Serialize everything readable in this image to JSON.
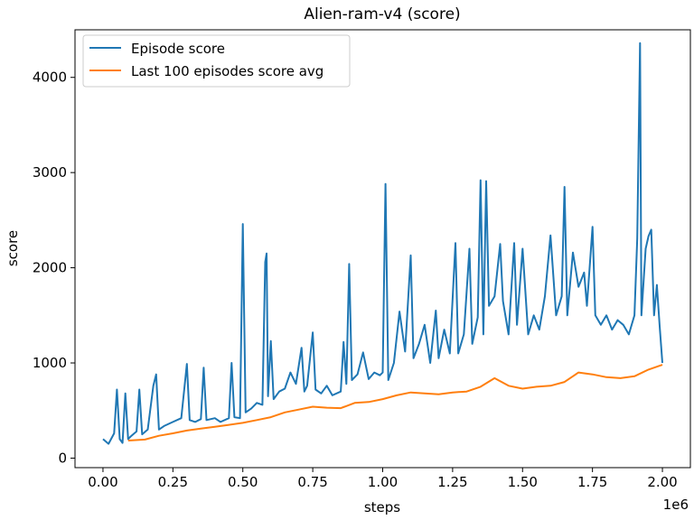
{
  "chart_data": {
    "type": "line",
    "title": "Alien-ram-v4 (score)",
    "xlabel": "steps",
    "ylabel": "score",
    "x_offset_label": "1e6",
    "xlim": [
      -0.1,
      2.1
    ],
    "ylim": [
      -100,
      4500
    ],
    "x_ticks": [
      0.0,
      0.25,
      0.5,
      0.75,
      1.0,
      1.25,
      1.5,
      1.75,
      2.0
    ],
    "x_tick_labels": [
      "0.00",
      "0.25",
      "0.50",
      "0.75",
      "1.00",
      "1.25",
      "1.50",
      "1.75",
      "2.00"
    ],
    "y_ticks": [
      0,
      1000,
      2000,
      3000,
      4000
    ],
    "y_tick_labels": [
      "0",
      "1000",
      "2000",
      "3000",
      "4000"
    ],
    "grid": false,
    "legend_position": "top-left",
    "series": [
      {
        "name": "Episode score",
        "color": "#1f77b4",
        "points": [
          [
            0.0,
            200
          ],
          [
            0.02,
            150
          ],
          [
            0.04,
            260
          ],
          [
            0.05,
            720
          ],
          [
            0.06,
            200
          ],
          [
            0.07,
            160
          ],
          [
            0.08,
            680
          ],
          [
            0.09,
            200
          ],
          [
            0.1,
            230
          ],
          [
            0.12,
            280
          ],
          [
            0.13,
            720
          ],
          [
            0.14,
            250
          ],
          [
            0.16,
            300
          ],
          [
            0.18,
            760
          ],
          [
            0.19,
            880
          ],
          [
            0.2,
            300
          ],
          [
            0.22,
            340
          ],
          [
            0.25,
            380
          ],
          [
            0.28,
            420
          ],
          [
            0.3,
            990
          ],
          [
            0.31,
            400
          ],
          [
            0.33,
            380
          ],
          [
            0.35,
            410
          ],
          [
            0.36,
            950
          ],
          [
            0.37,
            400
          ],
          [
            0.4,
            420
          ],
          [
            0.42,
            380
          ],
          [
            0.45,
            420
          ],
          [
            0.46,
            1000
          ],
          [
            0.47,
            430
          ],
          [
            0.49,
            420
          ],
          [
            0.5,
            2460
          ],
          [
            0.51,
            480
          ],
          [
            0.53,
            520
          ],
          [
            0.55,
            580
          ],
          [
            0.57,
            560
          ],
          [
            0.58,
            2060
          ],
          [
            0.585,
            2150
          ],
          [
            0.59,
            650
          ],
          [
            0.6,
            1230
          ],
          [
            0.61,
            620
          ],
          [
            0.63,
            700
          ],
          [
            0.65,
            730
          ],
          [
            0.67,
            900
          ],
          [
            0.69,
            780
          ],
          [
            0.71,
            1160
          ],
          [
            0.72,
            700
          ],
          [
            0.73,
            760
          ],
          [
            0.75,
            1320
          ],
          [
            0.76,
            720
          ],
          [
            0.78,
            680
          ],
          [
            0.8,
            760
          ],
          [
            0.82,
            660
          ],
          [
            0.85,
            700
          ],
          [
            0.86,
            1220
          ],
          [
            0.87,
            780
          ],
          [
            0.88,
            2040
          ],
          [
            0.89,
            820
          ],
          [
            0.91,
            880
          ],
          [
            0.93,
            1110
          ],
          [
            0.95,
            830
          ],
          [
            0.97,
            900
          ],
          [
            0.99,
            870
          ],
          [
            1.0,
            900
          ],
          [
            1.01,
            2880
          ],
          [
            1.02,
            820
          ],
          [
            1.04,
            1000
          ],
          [
            1.06,
            1540
          ],
          [
            1.08,
            1120
          ],
          [
            1.1,
            2130
          ],
          [
            1.11,
            1050
          ],
          [
            1.13,
            1200
          ],
          [
            1.15,
            1400
          ],
          [
            1.17,
            1000
          ],
          [
            1.19,
            1550
          ],
          [
            1.2,
            1050
          ],
          [
            1.22,
            1350
          ],
          [
            1.24,
            1100
          ],
          [
            1.26,
            2260
          ],
          [
            1.27,
            1100
          ],
          [
            1.29,
            1300
          ],
          [
            1.31,
            2200
          ],
          [
            1.32,
            1200
          ],
          [
            1.34,
            1480
          ],
          [
            1.35,
            2920
          ],
          [
            1.36,
            1300
          ],
          [
            1.37,
            2910
          ],
          [
            1.38,
            1600
          ],
          [
            1.4,
            1700
          ],
          [
            1.42,
            2250
          ],
          [
            1.43,
            1650
          ],
          [
            1.45,
            1300
          ],
          [
            1.47,
            2260
          ],
          [
            1.48,
            1400
          ],
          [
            1.5,
            2200
          ],
          [
            1.52,
            1300
          ],
          [
            1.54,
            1500
          ],
          [
            1.56,
            1350
          ],
          [
            1.58,
            1700
          ],
          [
            1.6,
            2340
          ],
          [
            1.62,
            1500
          ],
          [
            1.64,
            1700
          ],
          [
            1.65,
            2850
          ],
          [
            1.66,
            1500
          ],
          [
            1.68,
            2160
          ],
          [
            1.7,
            1800
          ],
          [
            1.72,
            1950
          ],
          [
            1.73,
            1600
          ],
          [
            1.75,
            2430
          ],
          [
            1.76,
            1500
          ],
          [
            1.78,
            1400
          ],
          [
            1.8,
            1500
          ],
          [
            1.82,
            1350
          ],
          [
            1.84,
            1450
          ],
          [
            1.86,
            1400
          ],
          [
            1.88,
            1300
          ],
          [
            1.9,
            1500
          ],
          [
            1.91,
            2310
          ],
          [
            1.92,
            4360
          ],
          [
            1.925,
            1500
          ],
          [
            1.94,
            2200
          ],
          [
            1.95,
            2330
          ],
          [
            1.96,
            2400
          ],
          [
            1.97,
            1500
          ],
          [
            1.98,
            1820
          ],
          [
            1.99,
            1400
          ],
          [
            2.0,
            1000
          ]
        ]
      },
      {
        "name": "Last 100 episodes score avg",
        "color": "#ff7f0e",
        "points": [
          [
            0.09,
            185
          ],
          [
            0.15,
            195
          ],
          [
            0.2,
            235
          ],
          [
            0.25,
            260
          ],
          [
            0.3,
            290
          ],
          [
            0.35,
            310
          ],
          [
            0.4,
            330
          ],
          [
            0.45,
            350
          ],
          [
            0.5,
            370
          ],
          [
            0.55,
            400
          ],
          [
            0.6,
            430
          ],
          [
            0.65,
            480
          ],
          [
            0.7,
            510
          ],
          [
            0.75,
            540
          ],
          [
            0.8,
            530
          ],
          [
            0.85,
            525
          ],
          [
            0.9,
            580
          ],
          [
            0.95,
            590
          ],
          [
            1.0,
            620
          ],
          [
            1.05,
            660
          ],
          [
            1.1,
            690
          ],
          [
            1.15,
            680
          ],
          [
            1.2,
            670
          ],
          [
            1.25,
            690
          ],
          [
            1.3,
            700
          ],
          [
            1.35,
            750
          ],
          [
            1.4,
            840
          ],
          [
            1.45,
            760
          ],
          [
            1.5,
            730
          ],
          [
            1.55,
            750
          ],
          [
            1.6,
            760
          ],
          [
            1.65,
            800
          ],
          [
            1.7,
            900
          ],
          [
            1.75,
            880
          ],
          [
            1.8,
            850
          ],
          [
            1.85,
            840
          ],
          [
            1.9,
            860
          ],
          [
            1.95,
            930
          ],
          [
            2.0,
            980
          ]
        ]
      }
    ]
  }
}
